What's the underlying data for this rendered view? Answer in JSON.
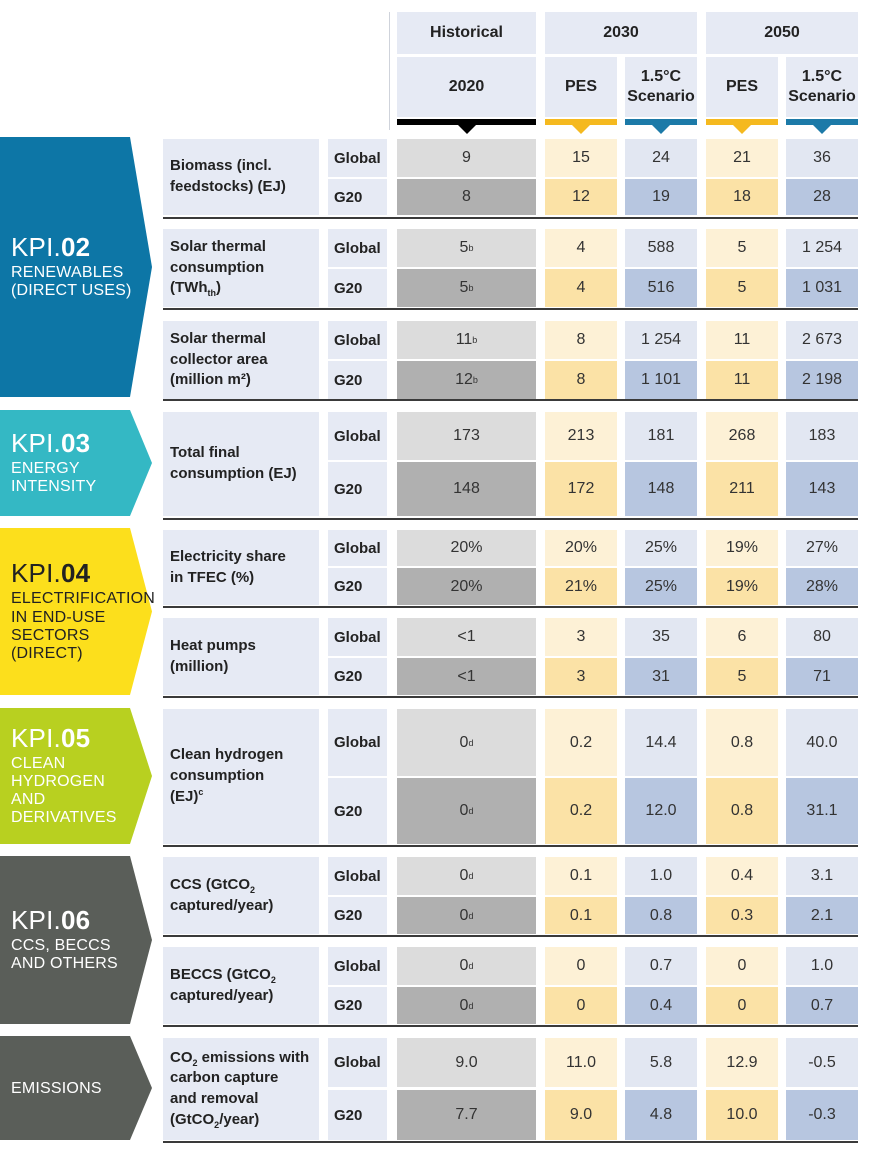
{
  "header": {
    "historical": "Historical",
    "y2030": "2030",
    "y2050": "2050",
    "year2020": "2020",
    "pes": "PES",
    "scenario_line1": "1.5°C",
    "scenario_line2": "Scenario"
  },
  "colors": {
    "historical_light": "#dcdcdc",
    "historical_dark": "#b0b0b0",
    "pes_light": "#fdf1d6",
    "pes_dark": "#fbe2a6",
    "scen_light": "#e2e7f2",
    "scen_dark": "#b7c6e0",
    "kpi02": "#0d76a6",
    "kpi03": "#34b8c4",
    "kpi04": "#fcdf1c",
    "kpi05": "#b8d020",
    "kpi06": "#5a5e59",
    "emissions": "#5a5e59"
  },
  "kpis": [
    {
      "code_prefix": "KPI.",
      "code_number": "02",
      "name_lines": [
        "RENEWABLES",
        "(DIRECT USES)"
      ]
    },
    {
      "code_prefix": "KPI.",
      "code_number": "03",
      "name_lines": [
        "ENERGY",
        "INTENSITY"
      ]
    },
    {
      "code_prefix": "KPI.",
      "code_number": "04",
      "name_lines": [
        "ELECTRIFICATION",
        "IN END-USE",
        "SECTORS",
        "(DIRECT)"
      ]
    },
    {
      "code_prefix": "KPI.",
      "code_number": "05",
      "name_lines": [
        "CLEAN",
        "HYDROGEN",
        "AND",
        "DERIVATIVES"
      ]
    },
    {
      "code_prefix": "KPI.",
      "code_number": "06",
      "name_lines": [
        "CCS, BECCS",
        "AND OTHERS"
      ]
    },
    {
      "code_prefix": "",
      "code_number": "",
      "name_lines": [
        "EMISSIONS"
      ]
    }
  ],
  "indicators": [
    {
      "label_lines": [
        "Biomass (incl.",
        "feedstocks) (EJ)"
      ],
      "rows": [
        {
          "region": "Global",
          "values": [
            "9",
            "15",
            "24",
            "21",
            "36"
          ]
        },
        {
          "region": "G20",
          "values": [
            "8",
            "12",
            "19",
            "18",
            "28"
          ]
        }
      ]
    },
    {
      "label_lines": [
        "Solar thermal",
        "consumption",
        "(TWh_th)"
      ],
      "rows": [
        {
          "region": "Global",
          "values": [
            "5^b",
            "4",
            "588",
            "5",
            "1 254"
          ]
        },
        {
          "region": "G20",
          "values": [
            "5^b",
            "4",
            "516",
            "5",
            "1 031"
          ]
        }
      ]
    },
    {
      "label_lines": [
        "Solar thermal",
        "collector area",
        "(million m²)"
      ],
      "rows": [
        {
          "region": "Global",
          "values": [
            "11^b",
            "8",
            "1 254",
            "11",
            "2 673"
          ]
        },
        {
          "region": "G20",
          "values": [
            "12^b",
            "8",
            "1 101",
            "11",
            "2 198"
          ]
        }
      ]
    },
    {
      "label_lines": [
        "Total final",
        "consumption (EJ)"
      ],
      "rows": [
        {
          "region": "Global",
          "values": [
            "173",
            "213",
            "181",
            "268",
            "183"
          ]
        },
        {
          "region": "G20",
          "values": [
            "148",
            "172",
            "148",
            "211",
            "143"
          ]
        }
      ]
    },
    {
      "label_lines": [
        "Electricity share",
        "in TFEC (%)"
      ],
      "rows": [
        {
          "region": "Global",
          "values": [
            "20%",
            "20%",
            "25%",
            "19%",
            "27%"
          ]
        },
        {
          "region": "G20",
          "values": [
            "20%",
            "21%",
            "25%",
            "19%",
            "28%"
          ]
        }
      ]
    },
    {
      "label_lines": [
        "Heat pumps",
        "(million)"
      ],
      "rows": [
        {
          "region": "Global",
          "values": [
            "<1",
            "3",
            "35",
            "6",
            "80"
          ]
        },
        {
          "region": "G20",
          "values": [
            "<1",
            "3",
            "31",
            "5",
            "71"
          ]
        }
      ]
    },
    {
      "label_lines": [
        "Clean hydrogen",
        "consumption",
        "(EJ)^c"
      ],
      "rows": [
        {
          "region": "Global",
          "values": [
            "0^d",
            "0.2",
            "14.4",
            "0.8",
            "40.0"
          ]
        },
        {
          "region": "G20",
          "values": [
            "0^d",
            "0.2",
            "12.0",
            "0.8",
            "31.1"
          ]
        }
      ]
    },
    {
      "label_lines": [
        "CCS (GtCO_2",
        "captured/year)"
      ],
      "rows": [
        {
          "region": "Global",
          "values": [
            "0^d",
            "0.1",
            "1.0",
            "0.4",
            "3.1"
          ]
        },
        {
          "region": "G20",
          "values": [
            "0^d",
            "0.1",
            "0.8",
            "0.3",
            "2.1"
          ]
        }
      ]
    },
    {
      "label_lines": [
        "BECCS (GtCO_2",
        "captured/year)"
      ],
      "rows": [
        {
          "region": "Global",
          "values": [
            "0^d",
            "0",
            "0.7",
            "0",
            "1.0"
          ]
        },
        {
          "region": "G20",
          "values": [
            "0^d",
            "0",
            "0.4",
            "0",
            "0.7"
          ]
        }
      ]
    },
    {
      "label_lines": [
        "CO_2 emissions with",
        "carbon capture",
        "and removal",
        "(GtCO_2/year)"
      ],
      "rows": [
        {
          "region": "Global",
          "values": [
            "9.0",
            "11.0",
            "5.8",
            "12.9",
            "-0.5"
          ]
        },
        {
          "region": "G20",
          "values": [
            "7.7",
            "9.0",
            "4.8",
            "10.0",
            "-0.3"
          ]
        }
      ]
    }
  ]
}
